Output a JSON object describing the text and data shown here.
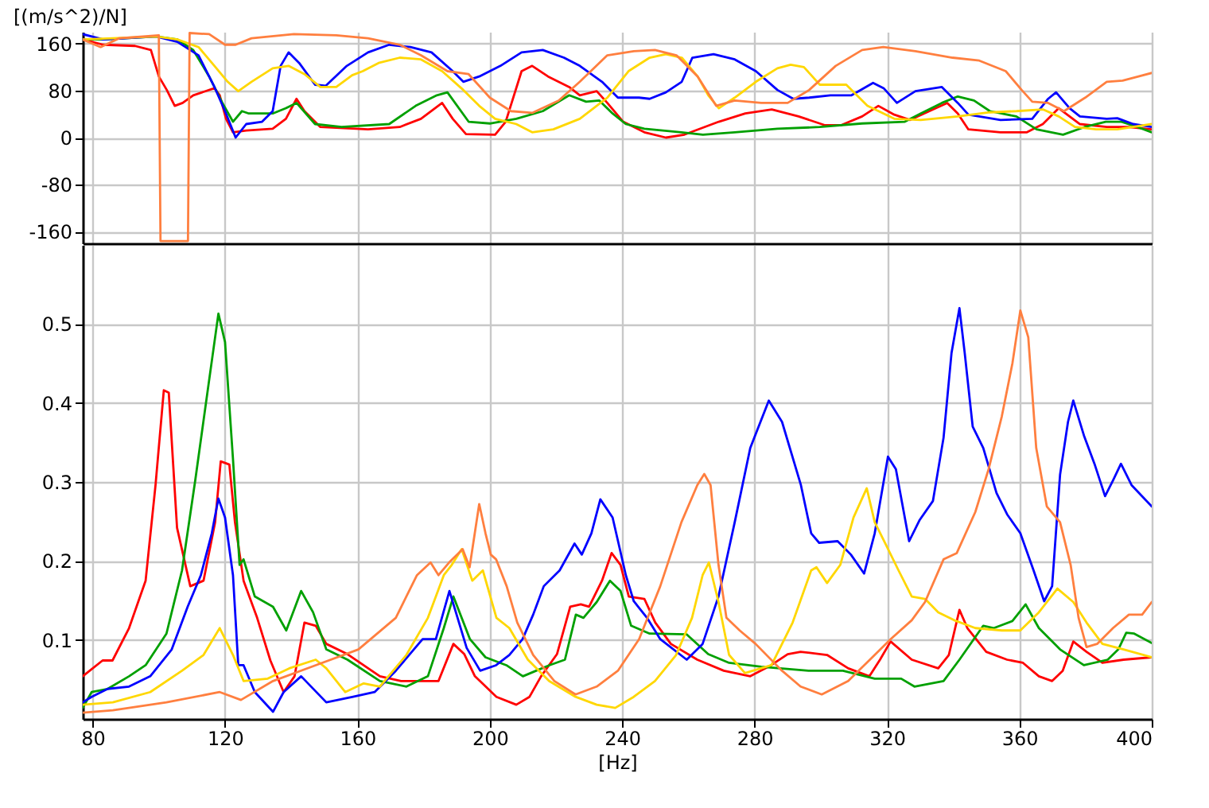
{
  "chart_data": [
    {
      "type": "line",
      "ylabel": "[(m/s^2)/N]",
      "xlim": [
        77,
        400
      ],
      "xticks": [
        80,
        120,
        160,
        200,
        240,
        280,
        320,
        360,
        400
      ],
      "ylim": [
        -180,
        180
      ],
      "yticks": [
        -160,
        -80,
        0,
        80,
        160
      ],
      "grid": true,
      "tick_labels": "y",
      "series": [
        {
          "color": "#ff0000",
          "x": [
            77,
            83.2,
            92.8,
            97.6,
            100,
            102.4,
            104.8,
            107.2,
            110.4,
            116.8,
            118.4,
            120.3,
            122.4,
            126.4,
            134.4,
            138.4,
            141.6,
            144,
            148.8,
            163.2,
            172.8,
            179.2,
            185.6,
            188.8,
            192.8,
            201.6,
            204.8,
            209.6,
            212.8,
            217.6,
            224,
            227.2,
            232.3,
            235.5,
            240.3,
            246.7,
            253.2,
            258.8,
            269.2,
            277.2,
            285.2,
            293.3,
            301.3,
            306.1,
            312.5,
            317.4,
            322.2,
            327,
            338.2,
            341.4,
            344.6,
            354.3,
            362.3,
            367.1,
            371.9,
            378.3,
            386.4,
            392.8,
            400
          ],
          "values": [
            167,
            158,
            156,
            149,
            104,
            81,
            54,
            59,
            72,
            84,
            72,
            32,
            9,
            12,
            15,
            32,
            66,
            45,
            18,
            14,
            18,
            32,
            59,
            32,
            6,
            5,
            27,
            113,
            122,
            104,
            86,
            72,
            79,
            59,
            27,
            9,
            0,
            5,
            27,
            41,
            48,
            36,
            21,
            21,
            36,
            54,
            39,
            30,
            59,
            41,
            14,
            9,
            9,
            23,
            50,
            23,
            18,
            18,
            14
          ]
        },
        {
          "color": "#00a000",
          "x": [
            77,
            83.2,
            99.2,
            105.6,
            110.4,
            115.2,
            119.2,
            122.4,
            125.1,
            127.2,
            134.4,
            138.4,
            141.6,
            147.2,
            155.2,
            169.6,
            177.6,
            184,
            187.2,
            193.6,
            200,
            208,
            216,
            224,
            229.1,
            233.1,
            237.1,
            241.1,
            246.7,
            257.9,
            264.4,
            274,
            286.9,
            299.7,
            312.5,
            325.4,
            330.2,
            336.6,
            341.4,
            346.3,
            351.1,
            359.1,
            365.2,
            373.2,
            379.7,
            386.1,
            390.9,
            395.7,
            400
          ],
          "values": [
            167,
            167,
            172,
            167,
            149,
            104,
            59,
            27,
            45,
            41,
            41,
            50,
            59,
            23,
            18,
            23,
            54,
            72,
            77,
            27,
            24,
            32,
            45,
            72,
            61,
            63,
            41,
            23,
            15,
            9,
            5,
            9,
            15,
            18,
            24,
            27,
            41,
            59,
            70,
            63,
            45,
            36,
            14,
            5,
            18,
            27,
            27,
            18,
            9
          ]
        },
        {
          "color": "#0000ff",
          "x": [
            77,
            83.2,
            99.2,
            105.6,
            112,
            116.8,
            120,
            123.2,
            126.4,
            131.2,
            134.4,
            136.8,
            139.2,
            142.4,
            147.2,
            150.4,
            156.8,
            163.2,
            169.6,
            176,
            182.4,
            188.8,
            192,
            196.8,
            203.2,
            209.6,
            216,
            222.4,
            227.2,
            233.9,
            238.7,
            245.1,
            248.3,
            253.2,
            258,
            261.2,
            267.6,
            274,
            280.4,
            286.9,
            291.7,
            296.5,
            302.9,
            309.3,
            315.8,
            319,
            323,
            328.6,
            336.6,
            341.4,
            344.6,
            354.3,
            363.9,
            368.7,
            371.1,
            375.2,
            378.3,
            386.4,
            389.6,
            394.4,
            400
          ],
          "values": [
            176,
            167,
            172,
            163,
            140,
            86,
            45,
            0,
            23,
            27,
            45,
            122,
            145,
            127,
            90,
            88,
            122,
            145,
            158,
            154,
            145,
            113,
            95,
            104,
            122,
            145,
            149,
            136,
            122,
            95,
            68,
            68,
            66,
            77,
            95,
            136,
            142,
            133,
            113,
            81,
            66,
            68,
            72,
            72,
            93,
            84,
            59,
            79,
            86,
            59,
            39,
            30,
            32,
            66,
            77,
            50,
            36,
            32,
            33,
            23,
            18
          ]
        },
        {
          "color": "#ffd700",
          "x": [
            77,
            99.2,
            105.6,
            112,
            116.8,
            120.8,
            124,
            128,
            134.4,
            139.2,
            144,
            148.8,
            153.6,
            158.4,
            161.6,
            166.4,
            172.8,
            179.2,
            185.6,
            192,
            196.8,
            201.6,
            208,
            212.8,
            219.2,
            227.2,
            235.5,
            241.9,
            248.3,
            253.2,
            258,
            262.8,
            266,
            269.2,
            274,
            280.4,
            286.9,
            290.9,
            294.9,
            299.7,
            307.7,
            314.1,
            322.2,
            330.2,
            341.4,
            351.1,
            359.1,
            367.1,
            371.9,
            376.8,
            383.2,
            389.6,
            400
          ],
          "values": [
            167,
            172,
            167,
            154,
            122,
            95,
            79,
            95,
            118,
            122,
            108,
            86,
            86,
            106,
            113,
            127,
            136,
            133,
            113,
            81,
            54,
            32,
            23,
            9,
            14,
            32,
            68,
            113,
            136,
            142,
            136,
            104,
            72,
            50,
            68,
            95,
            118,
            124,
            120,
            90,
            90,
            54,
            32,
            30,
            36,
            43,
            45,
            48,
            36,
            18,
            14,
            14,
            23
          ]
        },
        {
          "color": "#ff7f3f",
          "x": [
            77,
            82.4,
            88,
            100,
            100.5,
            108.8,
            109.3,
            115.2,
            120,
            123.2,
            128,
            140.8,
            153.6,
            163.2,
            172.8,
            179.2,
            187.2,
            193.6,
            200,
            206.4,
            212.8,
            220.8,
            227.2,
            235.5,
            243.5,
            249.9,
            256.4,
            262.8,
            268.4,
            274,
            282,
            290,
            296.5,
            304.5,
            312.5,
            318.9,
            328.6,
            339.8,
            347.9,
            355.9,
            360.7,
            363.9,
            368.7,
            373.5,
            379.9,
            386.4,
            391.2,
            396,
            400
          ],
          "values": [
            167,
            154,
            169,
            174,
            -176,
            -176,
            178,
            176,
            158,
            158,
            169,
            176,
            174,
            169,
            158,
            140,
            113,
            108,
            68,
            45,
            42,
            63,
            95,
            140,
            147,
            149,
            140,
            104,
            54,
            63,
            59,
            59,
            81,
            122,
            149,
            154,
            147,
            136,
            131,
            113,
            81,
            61,
            59,
            45,
            68,
            95,
            97,
            104,
            110
          ]
        }
      ]
    },
    {
      "type": "line",
      "xlabel": "[Hz]",
      "xlim": [
        77,
        400
      ],
      "xticks": [
        80,
        120,
        160,
        200,
        240,
        280,
        320,
        360,
        400
      ],
      "ylim": [
        0,
        0.6
      ],
      "yticks": [
        0.1,
        0.2,
        0.3,
        0.4,
        0.5
      ],
      "grid": true,
      "series": [
        {
          "color": "#ff0000",
          "x": [
            77,
            83,
            86,
            91,
            96,
            99,
            101.5,
            103,
            105.5,
            109.5,
            113.5,
            117,
            118.7,
            121.3,
            123,
            125.6,
            129.7,
            133.7,
            137.7,
            141,
            144,
            147.4,
            150.6,
            157,
            166.8,
            173.2,
            184.5,
            189,
            192.3,
            195.5,
            202,
            208,
            212,
            215.5,
            220.3,
            224.3,
            227.5,
            230,
            233.9,
            236.8,
            239.5,
            242,
            246.7,
            250,
            254.7,
            262.7,
            270.7,
            278.7,
            285,
            290,
            293.9,
            301.9,
            308.3,
            314.7,
            317.9,
            321.1,
            327.5,
            335.5,
            338.7,
            341.9,
            344.3,
            350,
            356.3,
            361.1,
            365.9,
            369.9,
            373.1,
            376.3,
            380.3,
            385.1,
            391.5,
            400
          ],
          "values": [
            0.054,
            0.074,
            0.074,
            0.115,
            0.175,
            0.296,
            0.416,
            0.413,
            0.242,
            0.168,
            0.175,
            0.249,
            0.326,
            0.322,
            0.249,
            0.175,
            0.128,
            0.074,
            0.034,
            0.054,
            0.122,
            0.118,
            0.095,
            0.082,
            0.054,
            0.048,
            0.048,
            0.095,
            0.082,
            0.054,
            0.028,
            0.018,
            0.028,
            0.054,
            0.082,
            0.142,
            0.145,
            0.142,
            0.175,
            0.21,
            0.195,
            0.155,
            0.152,
            0.122,
            0.095,
            0.075,
            0.061,
            0.054,
            0.068,
            0.082,
            0.085,
            0.081,
            0.064,
            0.054,
            0.075,
            0.098,
            0.075,
            0.064,
            0.081,
            0.138,
            0.115,
            0.085,
            0.075,
            0.071,
            0.054,
            0.048,
            0.061,
            0.098,
            0.085,
            0.071,
            0.075,
            0.078
          ]
        },
        {
          "color": "#00a000",
          "x": [
            77,
            79.7,
            84.5,
            91,
            96,
            102.3,
            107,
            111,
            115,
            118,
            120,
            122.4,
            124.4,
            125.6,
            129,
            134.5,
            138.5,
            143,
            146.6,
            150.6,
            157,
            166.8,
            174.8,
            181.3,
            186.1,
            189,
            194,
            198.7,
            205,
            210,
            214,
            218,
            222.7,
            226,
            228.3,
            232.3,
            236.3,
            239.5,
            242.7,
            248.3,
            259.5,
            266,
            272.3,
            282,
            296.3,
            306.7,
            316.3,
            324.3,
            328.3,
            337.1,
            341.9,
            349.1,
            352.3,
            357.9,
            361.9,
            365.9,
            372.3,
            379.5,
            386.7,
            389.9,
            392.3,
            394.7,
            400
          ],
          "values": [
            0.014,
            0.034,
            0.038,
            0.054,
            0.068,
            0.108,
            0.188,
            0.302,
            0.423,
            0.513,
            0.477,
            0.329,
            0.195,
            0.202,
            0.155,
            0.142,
            0.112,
            0.162,
            0.135,
            0.088,
            0.075,
            0.048,
            0.041,
            0.054,
            0.115,
            0.155,
            0.101,
            0.078,
            0.068,
            0.054,
            0.061,
            0.068,
            0.075,
            0.132,
            0.128,
            0.148,
            0.175,
            0.162,
            0.118,
            0.108,
            0.107,
            0.082,
            0.071,
            0.066,
            0.061,
            0.061,
            0.051,
            0.051,
            0.041,
            0.048,
            0.075,
            0.118,
            0.115,
            0.124,
            0.145,
            0.115,
            0.088,
            0.068,
            0.075,
            0.088,
            0.109,
            0.108,
            0.096
          ]
        },
        {
          "color": "#0000ff",
          "x": [
            77,
            79.7,
            84.5,
            91,
            97.4,
            103.9,
            108.7,
            112.7,
            116,
            118,
            120,
            122.4,
            124,
            125.6,
            129,
            134.5,
            137.7,
            143,
            150.6,
            158.7,
            165.2,
            171.6,
            179.7,
            183.7,
            187.8,
            193,
            197.1,
            201.9,
            205.9,
            209.9,
            213.1,
            216.3,
            221.1,
            225.6,
            227.8,
            230.7,
            233.4,
            237.1,
            241.1,
            243.5,
            247.5,
            251.5,
            259.5,
            264.3,
            269.1,
            274,
            278.7,
            284.3,
            288.3,
            294,
            297.1,
            299.5,
            305.1,
            309.1,
            313.1,
            316.3,
            320.3,
            322.7,
            326.7,
            329.9,
            333.9,
            337.1,
            339.5,
            341.9,
            343.5,
            345.9,
            349.1,
            353.1,
            356.3,
            360.3,
            364.3,
            367.5,
            369.9,
            372.3,
            374.7,
            376.3,
            379.5,
            382.7,
            385.9,
            388.3,
            390.7,
            393.9,
            400
          ],
          "values": [
            0.021,
            0.028,
            0.038,
            0.041,
            0.054,
            0.088,
            0.142,
            0.182,
            0.235,
            0.279,
            0.255,
            0.182,
            0.068,
            0.068,
            0.034,
            0.009,
            0.034,
            0.054,
            0.021,
            0.028,
            0.034,
            0.061,
            0.101,
            0.101,
            0.162,
            0.09,
            0.061,
            0.068,
            0.081,
            0.101,
            0.132,
            0.168,
            0.188,
            0.222,
            0.208,
            0.235,
            0.278,
            0.255,
            0.182,
            0.149,
            0.128,
            0.101,
            0.075,
            0.095,
            0.155,
            0.249,
            0.343,
            0.403,
            0.376,
            0.296,
            0.235,
            0.223,
            0.225,
            0.208,
            0.184,
            0.235,
            0.332,
            0.316,
            0.225,
            0.252,
            0.276,
            0.356,
            0.463,
            0.52,
            0.463,
            0.37,
            0.343,
            0.286,
            0.259,
            0.235,
            0.188,
            0.149,
            0.168,
            0.309,
            0.376,
            0.403,
            0.359,
            0.323,
            0.282,
            0.302,
            0.323,
            0.296,
            0.269
          ]
        },
        {
          "color": "#ffd700",
          "x": [
            77,
            86.1,
            97.4,
            107,
            113.5,
            118.4,
            122.4,
            125.6,
            132.9,
            139.4,
            147.4,
            150.6,
            156.3,
            161.9,
            166.8,
            174.8,
            181.3,
            186.1,
            188.5,
            191.5,
            194.7,
            197.9,
            202,
            205.9,
            211.5,
            217.9,
            225.9,
            232.3,
            237.9,
            243.5,
            249.9,
            256.3,
            261.1,
            264.3,
            266.2,
            269.1,
            272.3,
            277.1,
            285.1,
            291.5,
            297.1,
            298.7,
            301.9,
            305.9,
            309.9,
            313.9,
            316.3,
            319.5,
            323.5,
            327.5,
            331.5,
            335.5,
            340.3,
            346.7,
            354.7,
            360.3,
            365.9,
            371.5,
            376.3,
            380.3,
            385.1,
            391.5,
            400
          ],
          "values": [
            0.018,
            0.021,
            0.034,
            0.061,
            0.081,
            0.115,
            0.081,
            0.048,
            0.051,
            0.064,
            0.075,
            0.064,
            0.034,
            0.045,
            0.041,
            0.081,
            0.128,
            0.182,
            0.195,
            0.215,
            0.175,
            0.188,
            0.128,
            0.115,
            0.075,
            0.048,
            0.028,
            0.018,
            0.014,
            0.028,
            0.048,
            0.081,
            0.128,
            0.182,
            0.198,
            0.148,
            0.081,
            0.058,
            0.068,
            0.122,
            0.188,
            0.192,
            0.172,
            0.195,
            0.255,
            0.292,
            0.249,
            0.222,
            0.188,
            0.155,
            0.152,
            0.135,
            0.125,
            0.115,
            0.112,
            0.112,
            0.135,
            0.165,
            0.148,
            0.122,
            0.095,
            0.088,
            0.078
          ]
        },
        {
          "color": "#ff7f3f",
          "x": [
            77,
            86.1,
            102.3,
            118.4,
            124.8,
            134.5,
            147.4,
            160.3,
            171.6,
            178,
            182.1,
            184.5,
            187.7,
            191.8,
            193.9,
            196.8,
            198.7,
            200.3,
            201.9,
            205.1,
            208.3,
            213.1,
            219.5,
            225.9,
            232.3,
            238.7,
            245.1,
            251.5,
            257.9,
            262.7,
            264.8,
            266.7,
            269.1,
            271.5,
            275.5,
            280.3,
            288.3,
            293.9,
            300.3,
            308.3,
            316.3,
            321.1,
            327.5,
            331.5,
            337.1,
            341.1,
            346.7,
            350.7,
            354.7,
            357.9,
            360.3,
            362.7,
            365.1,
            368.3,
            372.3,
            375.5,
            377.9,
            380.3,
            383.5,
            388.3,
            393.1,
            397.1,
            400
          ],
          "values": [
            0.008,
            0.011,
            0.021,
            0.034,
            0.024,
            0.048,
            0.068,
            0.088,
            0.128,
            0.182,
            0.198,
            0.182,
            0.198,
            0.215,
            0.192,
            0.272,
            0.235,
            0.208,
            0.202,
            0.168,
            0.122,
            0.081,
            0.048,
            0.031,
            0.041,
            0.061,
            0.101,
            0.168,
            0.249,
            0.296,
            0.31,
            0.296,
            0.195,
            0.128,
            0.112,
            0.095,
            0.061,
            0.041,
            0.031,
            0.048,
            0.081,
            0.101,
            0.125,
            0.148,
            0.202,
            0.21,
            0.262,
            0.316,
            0.383,
            0.45,
            0.517,
            0.483,
            0.343,
            0.269,
            0.249,
            0.195,
            0.128,
            0.091,
            0.095,
            0.115,
            0.132,
            0.132,
            0.148
          ]
        }
      ]
    }
  ]
}
